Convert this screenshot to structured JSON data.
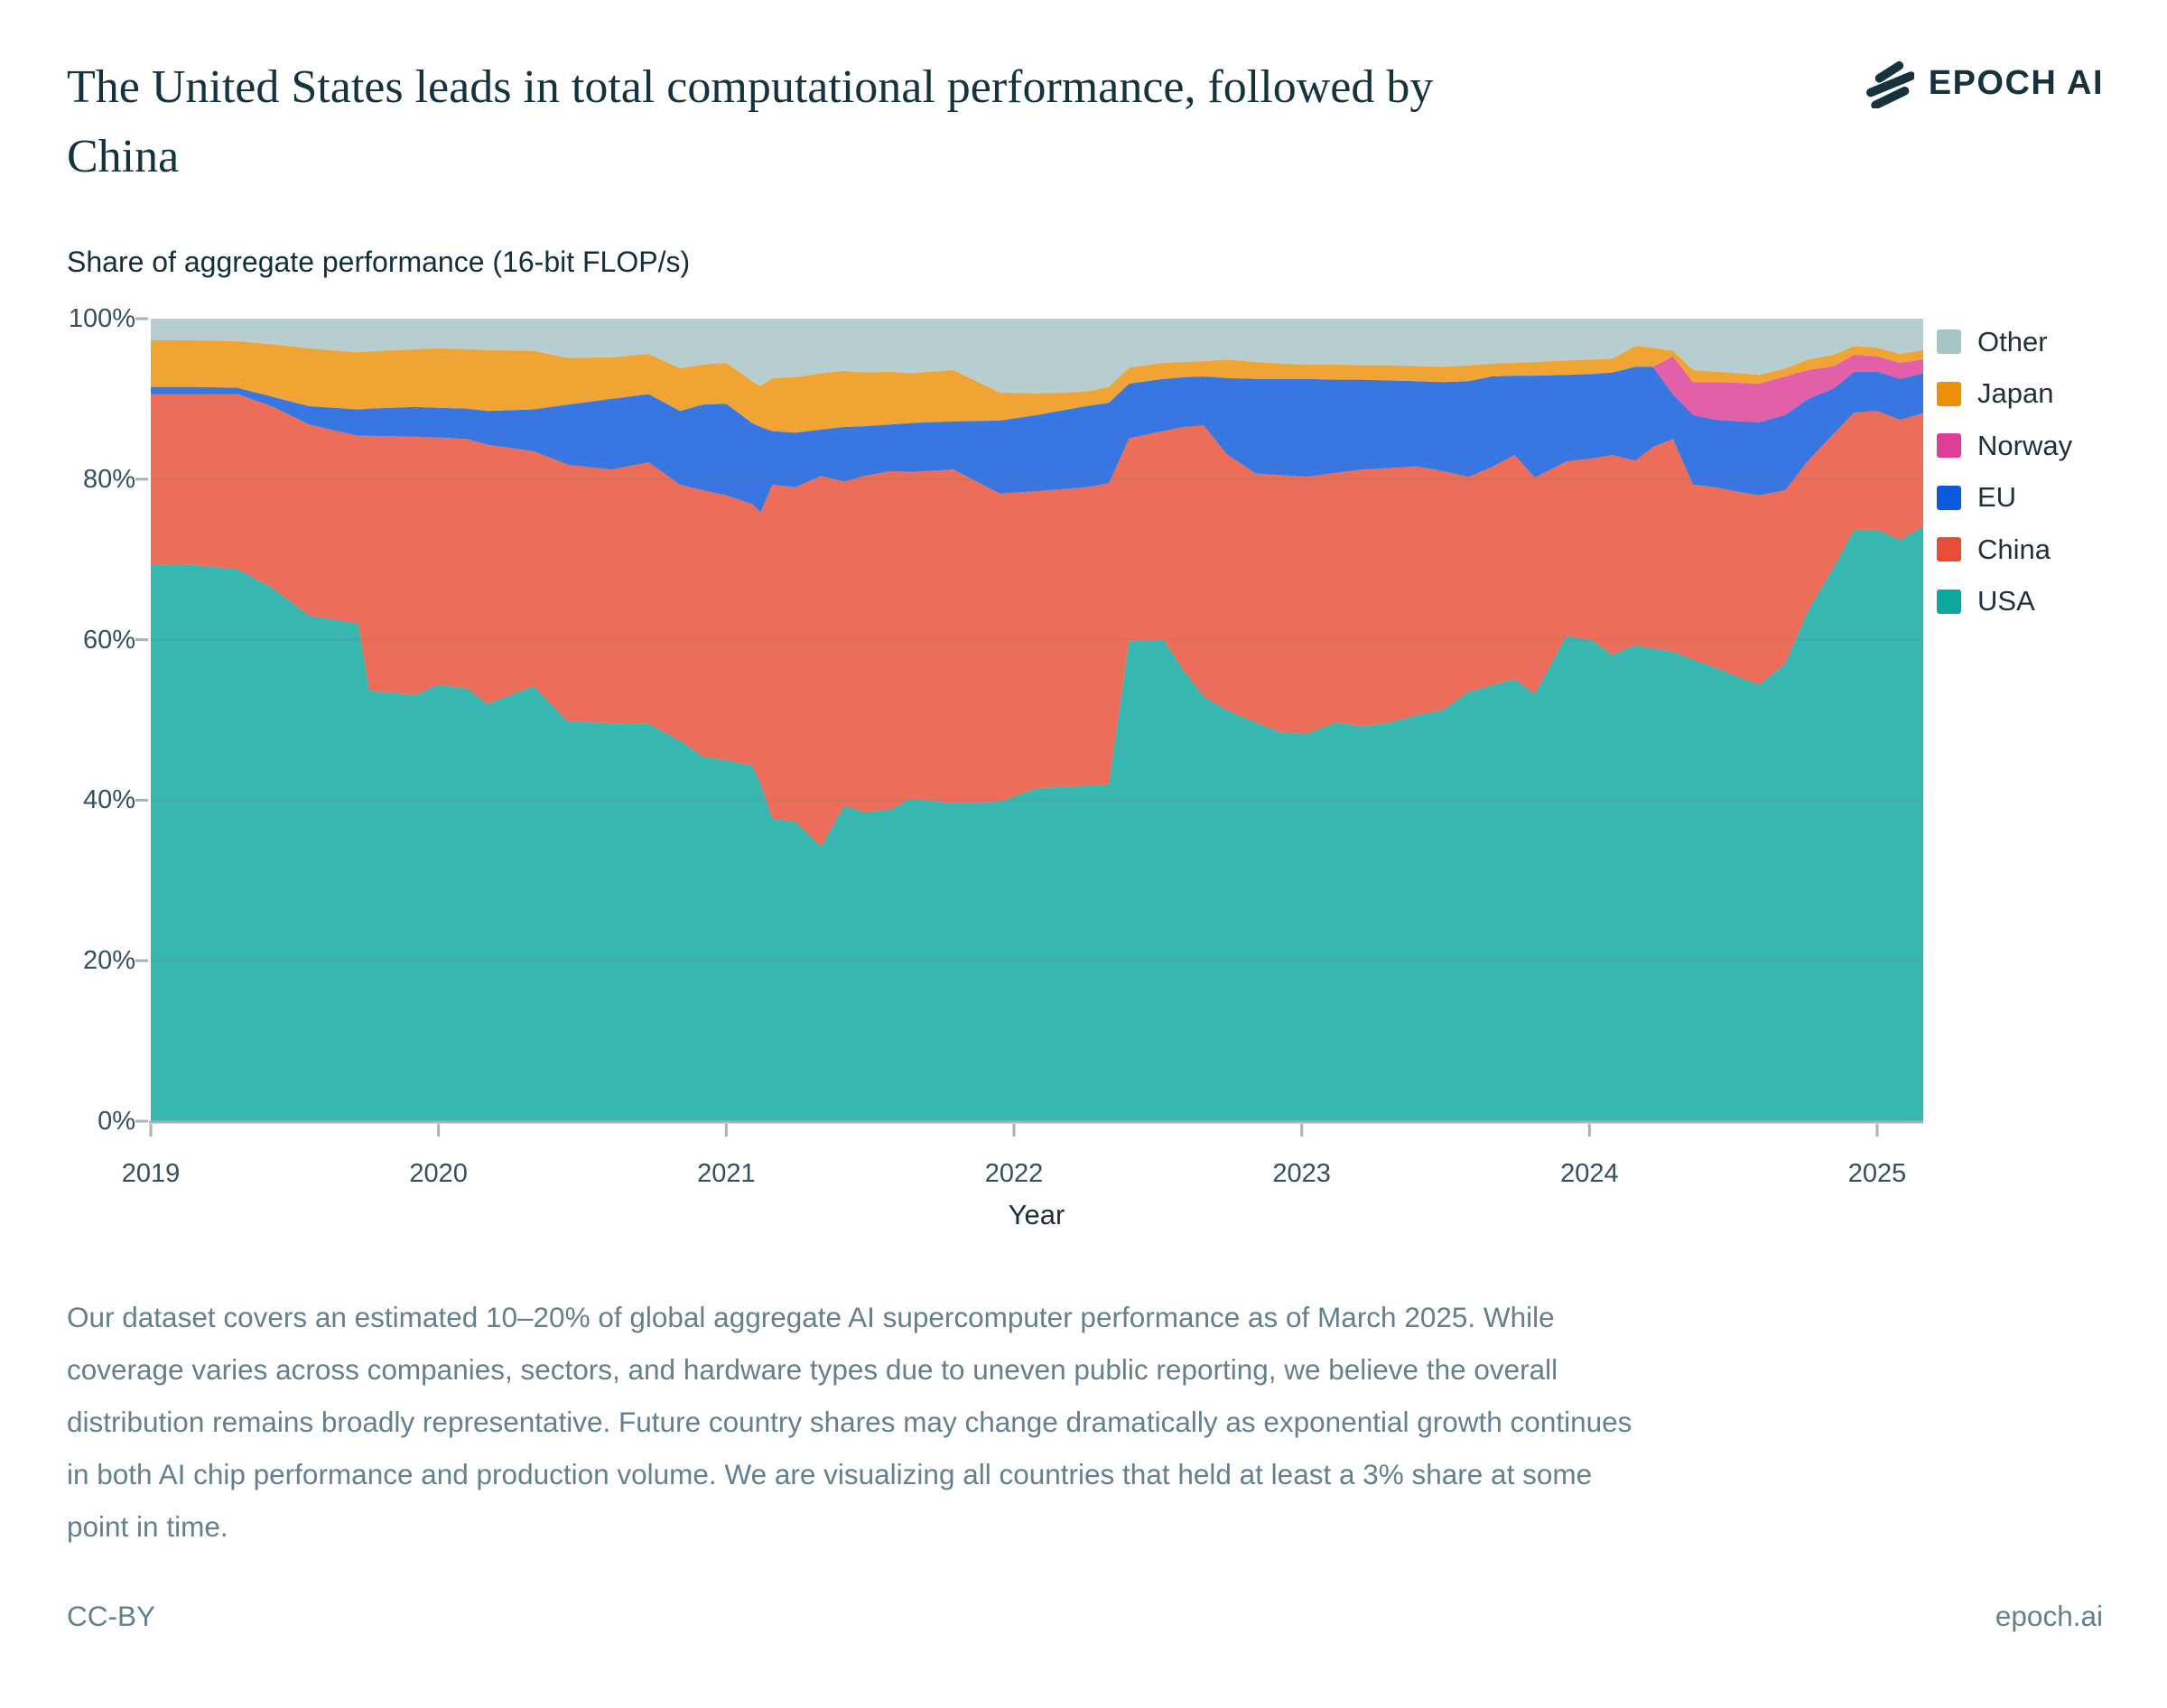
{
  "page": {
    "title_line1": "The United States leads in total computational performance, followed by",
    "title_line2": "China",
    "brand": "EPOCH AI",
    "license": "CC-BY",
    "site_link": "epoch.ai",
    "footnote_lines": [
      "Our dataset covers an estimated 10–20% of global aggregate AI supercomputer performance as of March 2025. While",
      "coverage varies across companies, sectors, and hardware types due to uneven public reporting, we believe the overall",
      "distribution remains broadly representative. Future country shares may change dramatically as exponential growth continues",
      "in both AI chip performance and production volume. We are visualizing all countries that held at least a 3% share at some",
      "point in time."
    ]
  },
  "style": {
    "title_color": "#14333e",
    "muted_text_color": "#64808c",
    "axis_text_color": "#33505c",
    "axis_line_color": "#a7b3b7",
    "grid_line_color": "rgba(110,110,110,0.16)",
    "area_opacity": 0.82
  },
  "chart_data": {
    "type": "area",
    "stacked": true,
    "normalized": "percent",
    "title": "The United States leads in total computational performance, followed by China",
    "ylabel": "Share of aggregate performance (16-bit FLOP/s)",
    "xlabel": "Year",
    "xlim": [
      2019,
      2025.16
    ],
    "ylim": [
      0,
      100
    ],
    "x_ticks": [
      2019,
      2020,
      2021,
      2022,
      2023,
      2024,
      2025
    ],
    "y_ticks": [
      0,
      20,
      40,
      60,
      80,
      100
    ],
    "y_tick_suffix": "%",
    "grid": "horizontal",
    "legend_position": "right",
    "legend_order_top_to_bottom": [
      "Other",
      "Japan",
      "Norway",
      "EU",
      "China",
      "USA"
    ],
    "x": [
      2019.0,
      2019.15,
      2019.3,
      2019.42,
      2019.55,
      2019.72,
      2019.76,
      2019.92,
      2020.0,
      2020.1,
      2020.17,
      2020.33,
      2020.45,
      2020.6,
      2020.73,
      2020.84,
      2020.92,
      2021.0,
      2021.09,
      2021.12,
      2021.16,
      2021.24,
      2021.33,
      2021.41,
      2021.48,
      2021.57,
      2021.64,
      2021.79,
      2021.95,
      2022.08,
      2022.25,
      2022.33,
      2022.4,
      2022.52,
      2022.59,
      2022.66,
      2022.74,
      2022.84,
      2022.93,
      2023.02,
      2023.12,
      2023.21,
      2023.31,
      2023.4,
      2023.49,
      2023.58,
      2023.66,
      2023.74,
      2023.81,
      2023.92,
      2024.01,
      2024.08,
      2024.16,
      2024.22,
      2024.29,
      2024.36,
      2024.44,
      2024.52,
      2024.59,
      2024.68,
      2024.76,
      2024.85,
      2024.92,
      2025.0,
      2025.08,
      2025.16
    ],
    "series": [
      {
        "name": "USA",
        "color": "#0ba79e",
        "values": [
          69.4,
          69.3,
          68.8,
          66.5,
          63,
          62,
          53.6,
          53.1,
          54.4,
          53.9,
          52,
          54.2,
          49.8,
          49.6,
          49.5,
          47.4,
          45.4,
          45,
          44.3,
          42,
          37.7,
          37.3,
          34.2,
          39.3,
          38.5,
          38.8,
          40.2,
          39.6,
          39.8,
          41.5,
          41.8,
          42,
          59.8,
          60,
          56.1,
          52.9,
          51.2,
          49.7,
          48.4,
          48.3,
          49.7,
          49.2,
          49.7,
          50.6,
          51.2,
          53.5,
          54.3,
          55.1,
          53.2,
          60.5,
          59.9,
          58.1,
          59.3,
          58.9,
          58.5,
          57.5,
          56.5,
          55.3,
          54.4,
          57,
          63.6,
          69.1,
          73.7,
          73.7,
          72.4,
          74.1
        ]
      },
      {
        "name": "China",
        "color": "#e84e36",
        "values": [
          21.2,
          21.3,
          21.8,
          22.6,
          23.8,
          23.4,
          31.8,
          32.2,
          30.8,
          31.1,
          32.3,
          29.3,
          32,
          31.6,
          32.6,
          31.9,
          33.2,
          33,
          32.6,
          33.9,
          41.6,
          41.7,
          46.2,
          40.4,
          41.9,
          42.2,
          40.7,
          41.6,
          38.4,
          37,
          37.2,
          37.5,
          25.3,
          26,
          30.4,
          33.8,
          31.9,
          31,
          32.1,
          32,
          31.1,
          32,
          31.7,
          31,
          29.8,
          26.8,
          27.2,
          27.9,
          27,
          21.7,
          22.7,
          24.9,
          23,
          25.1,
          26.5,
          21.8,
          22.5,
          23.1,
          23.6,
          21.6,
          18.7,
          16.6,
          14.6,
          14.8,
          15,
          14.1
        ]
      },
      {
        "name": "EU",
        "color": "#0c59dc",
        "values": [
          0.9,
          0.9,
          0.8,
          1.2,
          2.3,
          3.3,
          3.4,
          3.7,
          3.7,
          3.8,
          4.2,
          5.2,
          7.5,
          8.8,
          8.5,
          9.2,
          10.7,
          11.4,
          10.1,
          10.6,
          6.7,
          6.8,
          5.8,
          6.8,
          6.2,
          5.8,
          6.1,
          6,
          9.1,
          9.5,
          10.1,
          10,
          6.8,
          6.5,
          6.2,
          6.1,
          9.5,
          11.8,
          12,
          12.2,
          11.6,
          11.2,
          10.9,
          10.6,
          11.1,
          11.9,
          11.3,
          9.9,
          12.7,
          10.8,
          10.5,
          10.3,
          11.7,
          10,
          5.6,
          8.7,
          8.4,
          8.8,
          9.1,
          9.4,
          7.7,
          5.6,
          5.1,
          4.9,
          5.1,
          5
        ]
      },
      {
        "name": "Norway",
        "color": "#dc3d95",
        "values": [
          0,
          0,
          0,
          0,
          0,
          0,
          0,
          0,
          0,
          0,
          0,
          0,
          0,
          0,
          0,
          0,
          0,
          0,
          0,
          0,
          0,
          0,
          0,
          0,
          0,
          0,
          0,
          0,
          0,
          0,
          0,
          0,
          0,
          0,
          0,
          0,
          0,
          0,
          0,
          0,
          0,
          0,
          0,
          0,
          0,
          0,
          0,
          0,
          0,
          0,
          0,
          0,
          0,
          0,
          4.7,
          4.1,
          4.7,
          4.8,
          4.8,
          4.8,
          3.6,
          2.8,
          2.1,
          1.9,
          2,
          1.7
        ]
      },
      {
        "name": "Japan",
        "color": "#ec9007",
        "values": [
          5.8,
          5.8,
          5.8,
          6.5,
          7.2,
          7.1,
          7.1,
          7.2,
          7.4,
          7.4,
          7.6,
          7.3,
          5.8,
          5.2,
          5,
          5.3,
          5,
          5.1,
          5.2,
          5.1,
          6.6,
          6.9,
          7,
          7,
          6.7,
          6.6,
          6.2,
          6.4,
          3.5,
          2.7,
          1.8,
          2,
          2,
          2,
          1.9,
          1.9,
          2.3,
          2.1,
          1.9,
          1.8,
          1.9,
          1.8,
          1.9,
          1.9,
          1.9,
          2,
          1.6,
          1.6,
          1.7,
          1.8,
          1.8,
          1.7,
          2.6,
          2.4,
          0.7,
          1.5,
          1.3,
          1.2,
          1.1,
          1,
          1.3,
          1.4,
          1.1,
          1.1,
          1.1,
          1.2
        ]
      },
      {
        "name": "Other",
        "color": "#a6c3c5",
        "values": [
          2.7,
          2.7,
          2.8,
          3.2,
          3.7,
          4.2,
          4.1,
          3.8,
          3.7,
          3.8,
          3.9,
          4,
          4.9,
          4.8,
          4.4,
          6.2,
          5.7,
          5.5,
          7.8,
          8.4,
          7.4,
          7.3,
          6.8,
          6.5,
          6.7,
          6.6,
          6.8,
          6.4,
          9.2,
          9.3,
          9.1,
          8.5,
          6.1,
          5.5,
          5.4,
          5.3,
          5.1,
          5.4,
          5.6,
          5.7,
          5.7,
          5.8,
          5.8,
          5.9,
          6,
          5.8,
          5.6,
          5.5,
          5.4,
          5.2,
          5.1,
          5,
          3.4,
          3.6,
          4,
          6.4,
          6.6,
          6.8,
          7,
          6.2,
          5.1,
          4.5,
          3.4,
          3.6,
          4.4,
          3.9
        ]
      }
    ]
  }
}
